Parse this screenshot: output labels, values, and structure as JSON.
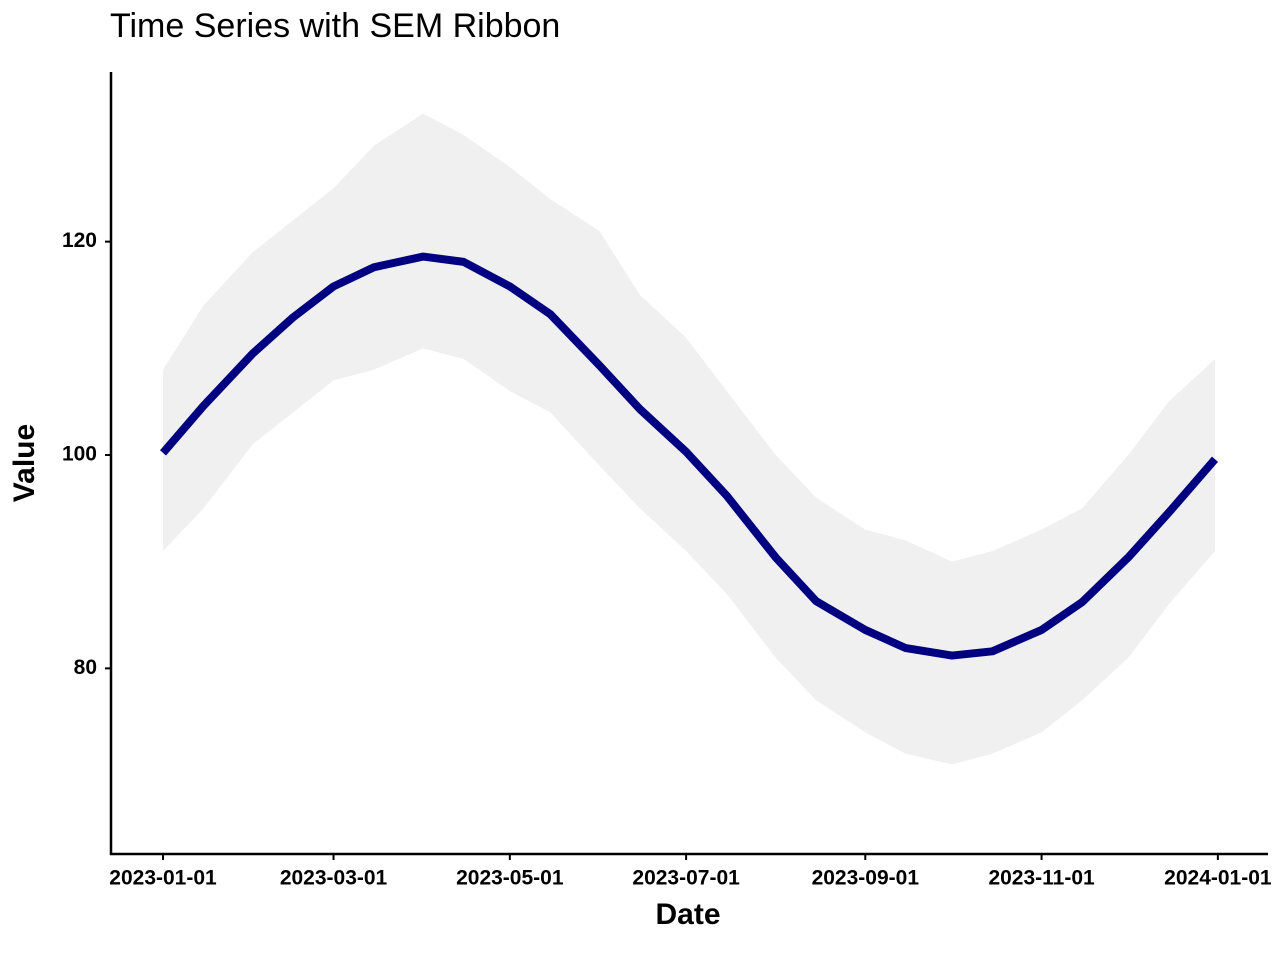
{
  "chart_data": {
    "type": "line",
    "title": "Time Series with SEM Ribbon",
    "x_label": "Date",
    "y_label": "Value",
    "x": [
      "2023-01-01",
      "2023-01-15",
      "2023-02-01",
      "2023-02-15",
      "2023-03-01",
      "2023-03-15",
      "2023-04-01",
      "2023-04-15",
      "2023-05-01",
      "2023-05-15",
      "2023-06-01",
      "2023-06-15",
      "2023-07-01",
      "2023-07-15",
      "2023-08-01",
      "2023-08-15",
      "2023-09-01",
      "2023-09-15",
      "2023-10-01",
      "2023-10-15",
      "2023-11-01",
      "2023-11-15",
      "2023-12-01",
      "2023-12-15",
      "2023-12-31"
    ],
    "line": {
      "color": "#000080",
      "values": [
        100.2,
        104.6,
        109.5,
        112.9,
        115.8,
        117.6,
        118.6,
        118.1,
        115.8,
        113.2,
        108.4,
        104.3,
        100.3,
        96.2,
        90.4,
        86.3,
        83.6,
        81.9,
        81.2,
        81.6,
        83.6,
        86.2,
        90.4,
        94.6,
        99.6
      ]
    },
    "ribbon": {
      "color": "#f0f0f0",
      "lower": [
        91,
        95,
        101,
        104,
        107,
        108,
        110,
        109,
        106,
        104,
        99,
        95,
        91,
        87,
        81,
        77,
        74,
        72,
        71,
        72,
        74,
        77,
        81,
        86,
        91
      ],
      "upper": [
        108,
        114,
        119,
        122,
        125,
        129,
        132,
        130,
        127,
        124,
        121,
        115,
        111,
        106,
        100,
        96,
        93,
        92,
        90,
        91,
        93,
        95,
        100,
        105,
        109
      ]
    },
    "xlim": [
      "2022-12-14",
      "2024-01-18"
    ],
    "xticks": [
      "2023-01-01",
      "2023-03-01",
      "2023-05-01",
      "2023-07-01",
      "2023-09-01",
      "2023-11-01",
      "2024-01-01"
    ],
    "ylim": [
      62.6,
      135.9
    ],
    "yticks": [
      80,
      100,
      120
    ],
    "grid": false
  }
}
